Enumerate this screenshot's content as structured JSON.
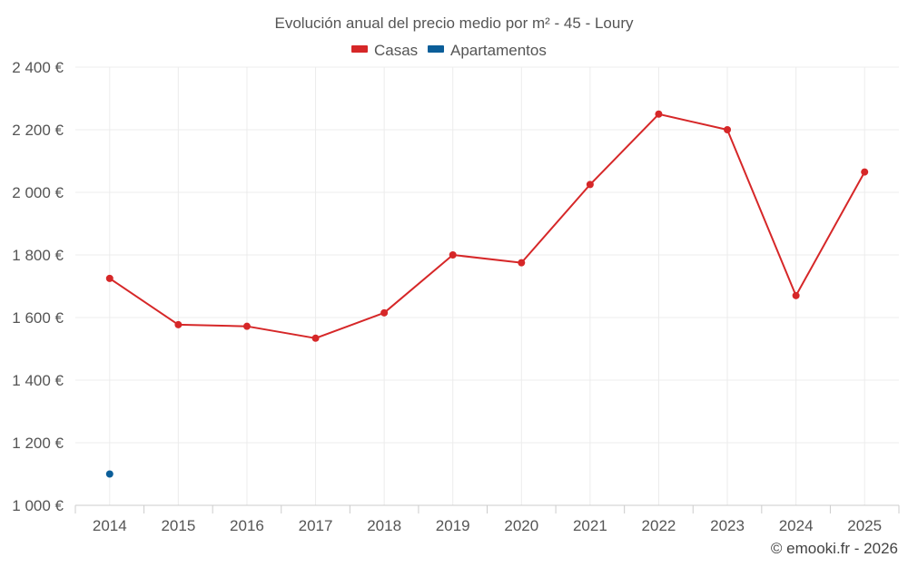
{
  "chart_data": {
    "type": "line",
    "title": "Evolución anual del precio medio por m² - 45 - Loury",
    "xlabel": "",
    "ylabel": "",
    "categories": [
      "2014",
      "2015",
      "2016",
      "2017",
      "2018",
      "2019",
      "2020",
      "2021",
      "2022",
      "2023",
      "2024",
      "2025"
    ],
    "ylim": [
      1000,
      2400
    ],
    "yticks": [
      1000,
      1200,
      1400,
      1600,
      1800,
      2000,
      2200,
      2400
    ],
    "ytick_labels": [
      "1 000 €",
      "1 200 €",
      "1 400 €",
      "1 600 €",
      "1 800 €",
      "2 000 €",
      "2 200 €",
      "2 400 €"
    ],
    "grid": true,
    "legend_position": "top-center",
    "series": [
      {
        "name": "Casas",
        "color": "#d62728",
        "values": [
          1725,
          1577,
          1572,
          1534,
          1615,
          1800,
          1775,
          2025,
          2250,
          2200,
          1670,
          2065
        ]
      },
      {
        "name": "Apartamentos",
        "color": "#0b5e99",
        "values": [
          1100,
          null,
          null,
          null,
          null,
          null,
          null,
          null,
          null,
          null,
          null,
          null
        ]
      }
    ]
  },
  "credit": "© emooki.fr - 2026"
}
